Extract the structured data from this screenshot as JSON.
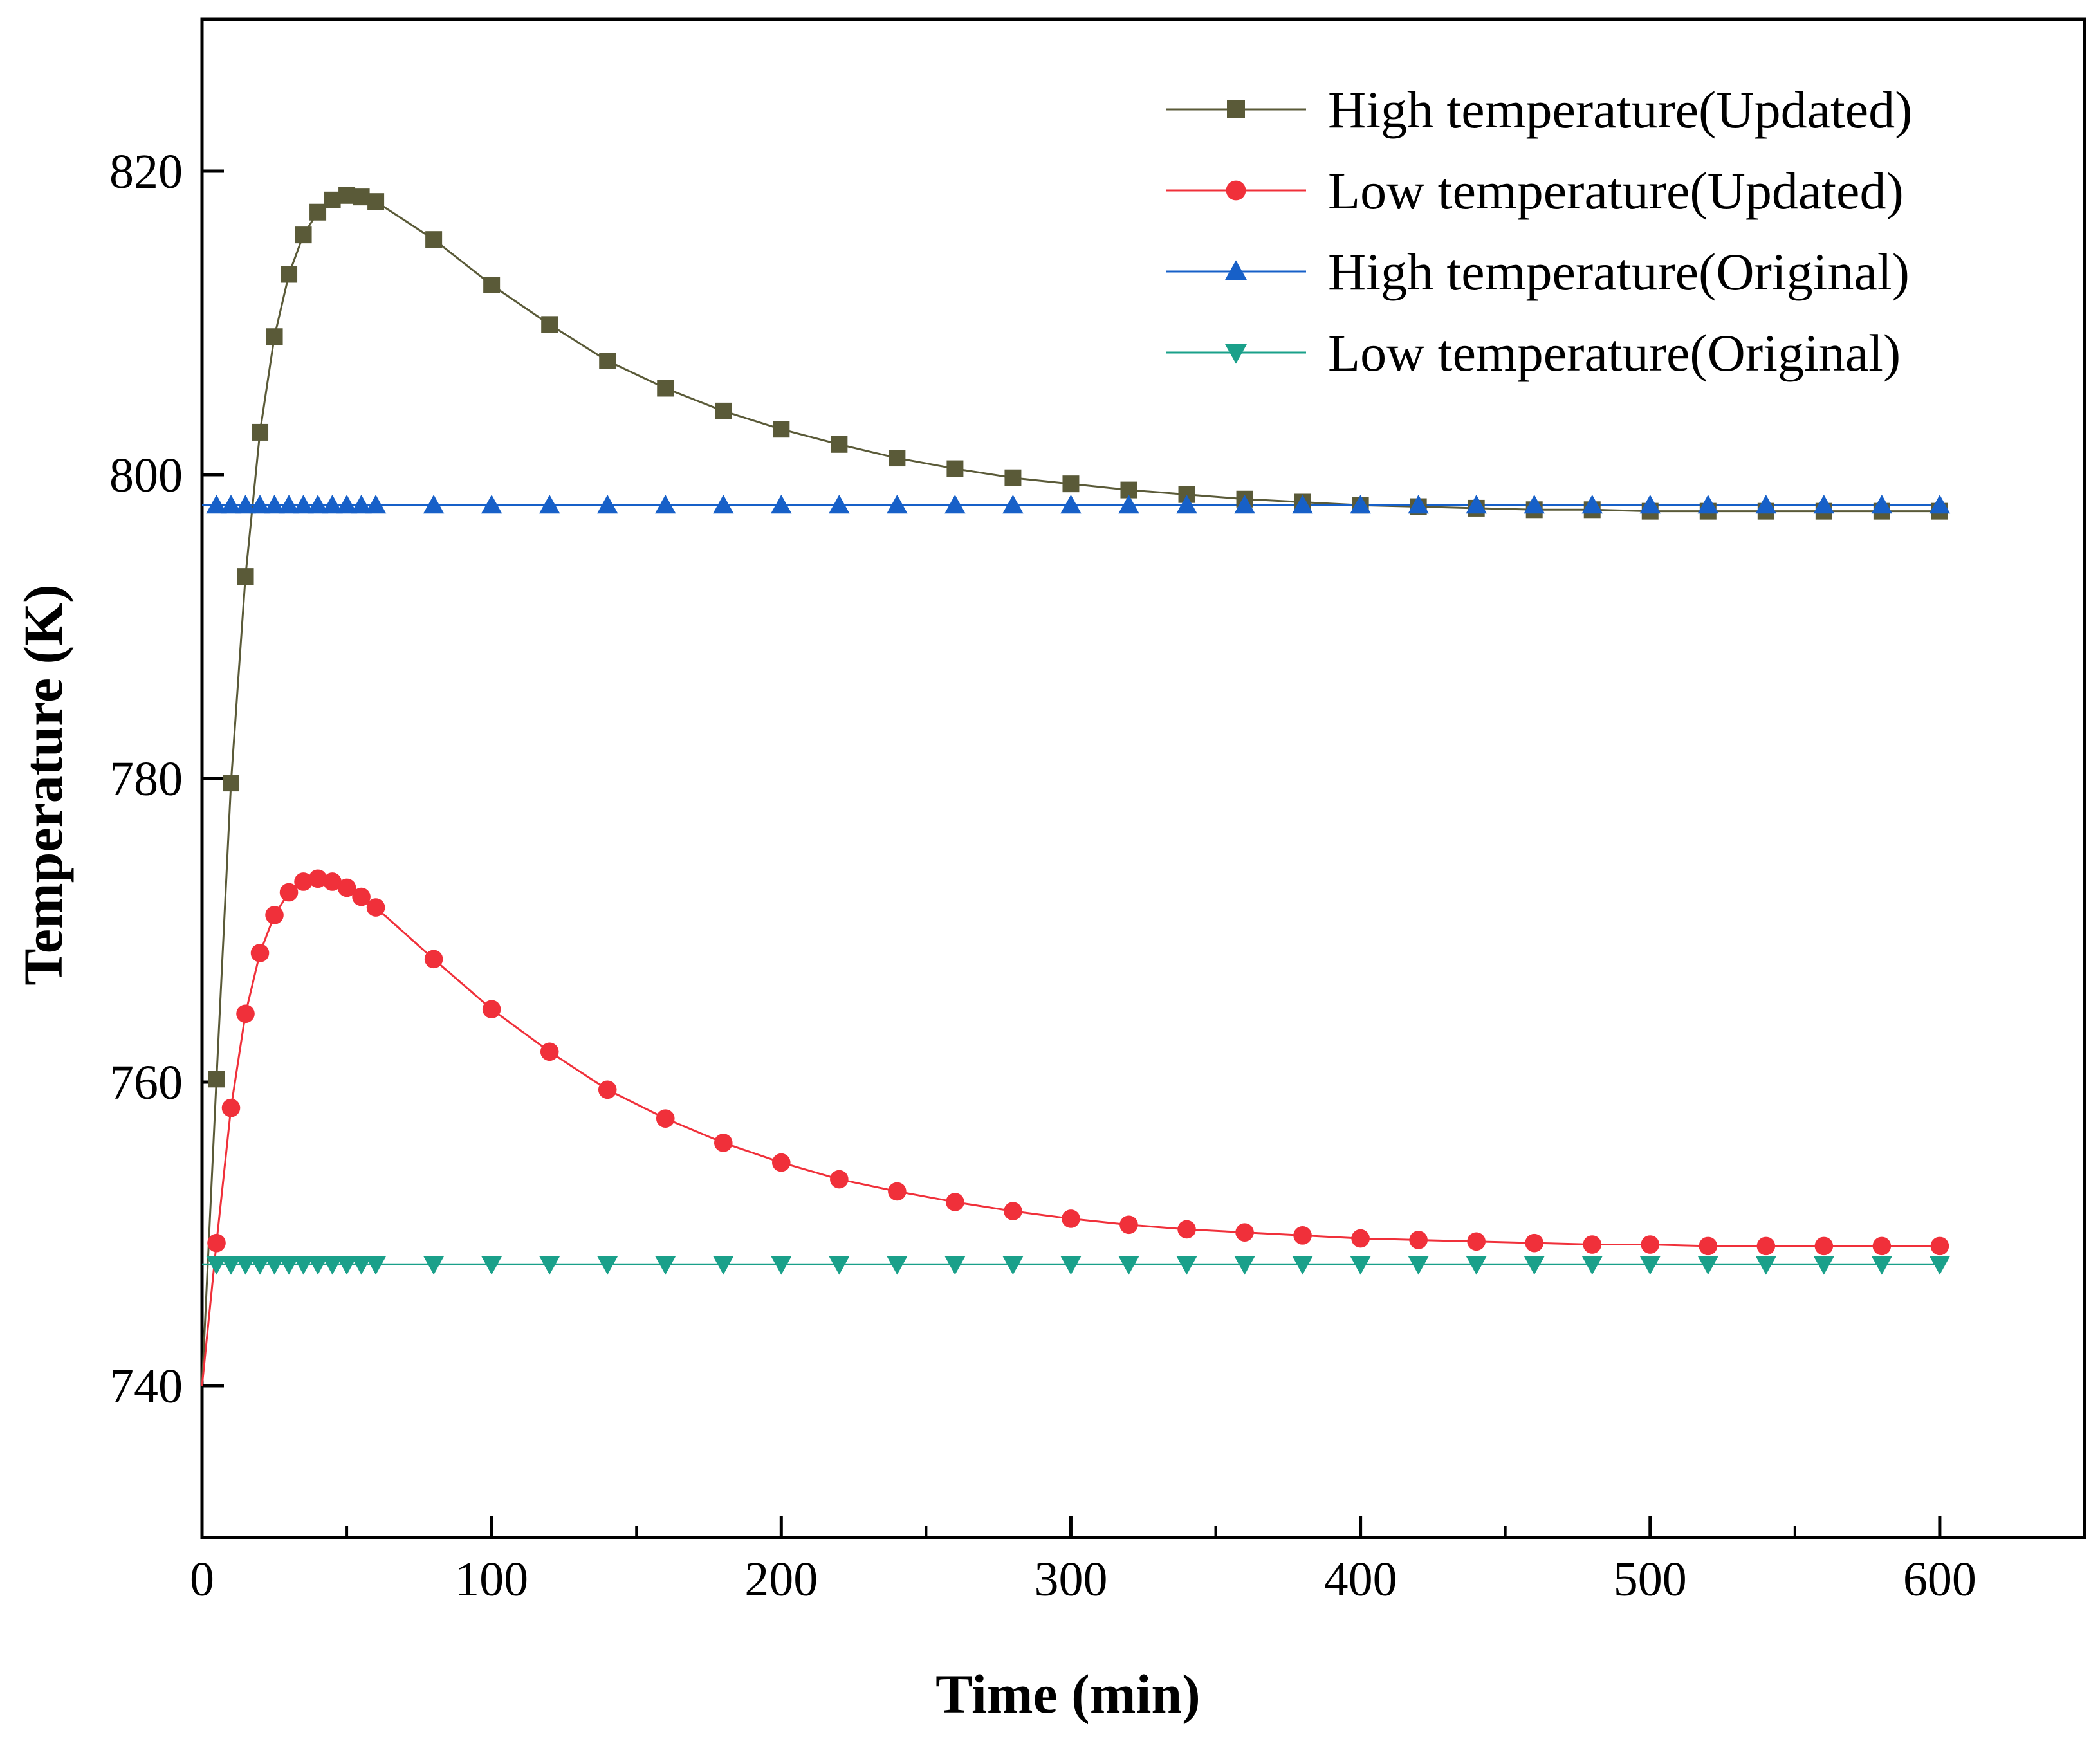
{
  "chart_data": {
    "type": "line",
    "title": "",
    "xlabel": "Time (min)",
    "ylabel": "Temperature (K)",
    "xlim": [
      0,
      650
    ],
    "ylim": [
      730,
      830
    ],
    "xticks": [
      0,
      100,
      200,
      300,
      400,
      500,
      600
    ],
    "xtick_labels": [
      "0",
      "100",
      "200",
      "300",
      "400",
      "500",
      "600"
    ],
    "yticks": [
      740,
      760,
      780,
      800,
      820
    ],
    "ytick_labels": [
      "740",
      "760",
      "780",
      "800",
      "820"
    ],
    "grid": false,
    "legend_position": "top-right",
    "series": [
      {
        "name": "High temperature(Updated)",
        "color": "#5a5a38",
        "marker": "square",
        "x": [
          0,
          5,
          10,
          15,
          20,
          25,
          30,
          35,
          40,
          45,
          50,
          55,
          60,
          80,
          100,
          120,
          140,
          160,
          180,
          200,
          220,
          240,
          260,
          280,
          300,
          320,
          340,
          360,
          380,
          400,
          420,
          440,
          460,
          480,
          500,
          520,
          540,
          560,
          580,
          600
        ],
        "values": [
          740,
          760.2,
          779.7,
          793.3,
          802.8,
          809.1,
          813.2,
          815.8,
          817.3,
          818.1,
          818.4,
          818.3,
          818.0,
          815.5,
          812.5,
          809.9,
          807.5,
          805.7,
          804.2,
          803.0,
          802.0,
          801.1,
          800.4,
          799.8,
          799.4,
          799.0,
          798.7,
          798.4,
          798.2,
          798.0,
          797.9,
          797.8,
          797.7,
          797.7,
          797.6,
          797.6,
          797.6,
          797.6,
          797.6,
          797.6
        ]
      },
      {
        "name": "Low temperature(Updated)",
        "color": "#f0303a",
        "marker": "circle",
        "x": [
          0,
          5,
          10,
          15,
          20,
          25,
          30,
          35,
          40,
          45,
          50,
          55,
          60,
          80,
          100,
          120,
          140,
          160,
          180,
          200,
          220,
          240,
          260,
          280,
          300,
          320,
          340,
          360,
          380,
          400,
          420,
          440,
          460,
          480,
          500,
          520,
          540,
          560,
          580,
          600
        ],
        "values": [
          740,
          749.4,
          758.3,
          764.5,
          768.5,
          771.0,
          772.5,
          773.2,
          773.4,
          773.2,
          772.8,
          772.2,
          771.5,
          768.1,
          764.8,
          762.0,
          759.5,
          757.6,
          756.0,
          754.7,
          753.6,
          752.8,
          752.1,
          751.5,
          751.0,
          750.6,
          750.3,
          750.1,
          749.9,
          749.7,
          749.6,
          749.5,
          749.4,
          749.3,
          749.3,
          749.2,
          749.2,
          749.2,
          749.2,
          749.2
        ]
      },
      {
        "name": "High temperature(Original)",
        "color": "#1760c8",
        "marker": "triangle-up",
        "x": [
          0,
          5,
          10,
          15,
          20,
          25,
          30,
          35,
          40,
          45,
          50,
          55,
          60,
          80,
          100,
          120,
          140,
          160,
          180,
          200,
          220,
          240,
          260,
          280,
          300,
          320,
          340,
          360,
          380,
          400,
          420,
          440,
          460,
          480,
          500,
          520,
          540,
          560,
          580,
          600
        ],
        "values": [
          798,
          798,
          798,
          798,
          798,
          798,
          798,
          798,
          798,
          798,
          798,
          798,
          798,
          798,
          798,
          798,
          798,
          798,
          798,
          798,
          798,
          798,
          798,
          798,
          798,
          798,
          798,
          798,
          798,
          798,
          798,
          798,
          798,
          798,
          798,
          798,
          798,
          798,
          798,
          798
        ]
      },
      {
        "name": "Low temperature(Original)",
        "color": "#1aa08a",
        "marker": "triangle-down",
        "x": [
          0,
          5,
          10,
          15,
          20,
          25,
          30,
          35,
          40,
          45,
          50,
          55,
          60,
          80,
          100,
          120,
          140,
          160,
          180,
          200,
          220,
          240,
          260,
          280,
          300,
          320,
          340,
          360,
          380,
          400,
          420,
          440,
          460,
          480,
          500,
          520,
          540,
          560,
          580,
          600
        ],
        "values": [
          748,
          748,
          748,
          748,
          748,
          748,
          748,
          748,
          748,
          748,
          748,
          748,
          748,
          748,
          748,
          748,
          748,
          748,
          748,
          748,
          748,
          748,
          748,
          748,
          748,
          748,
          748,
          748,
          748,
          748,
          748,
          748,
          748,
          748,
          748,
          748,
          748,
          748,
          748,
          748
        ]
      }
    ]
  }
}
